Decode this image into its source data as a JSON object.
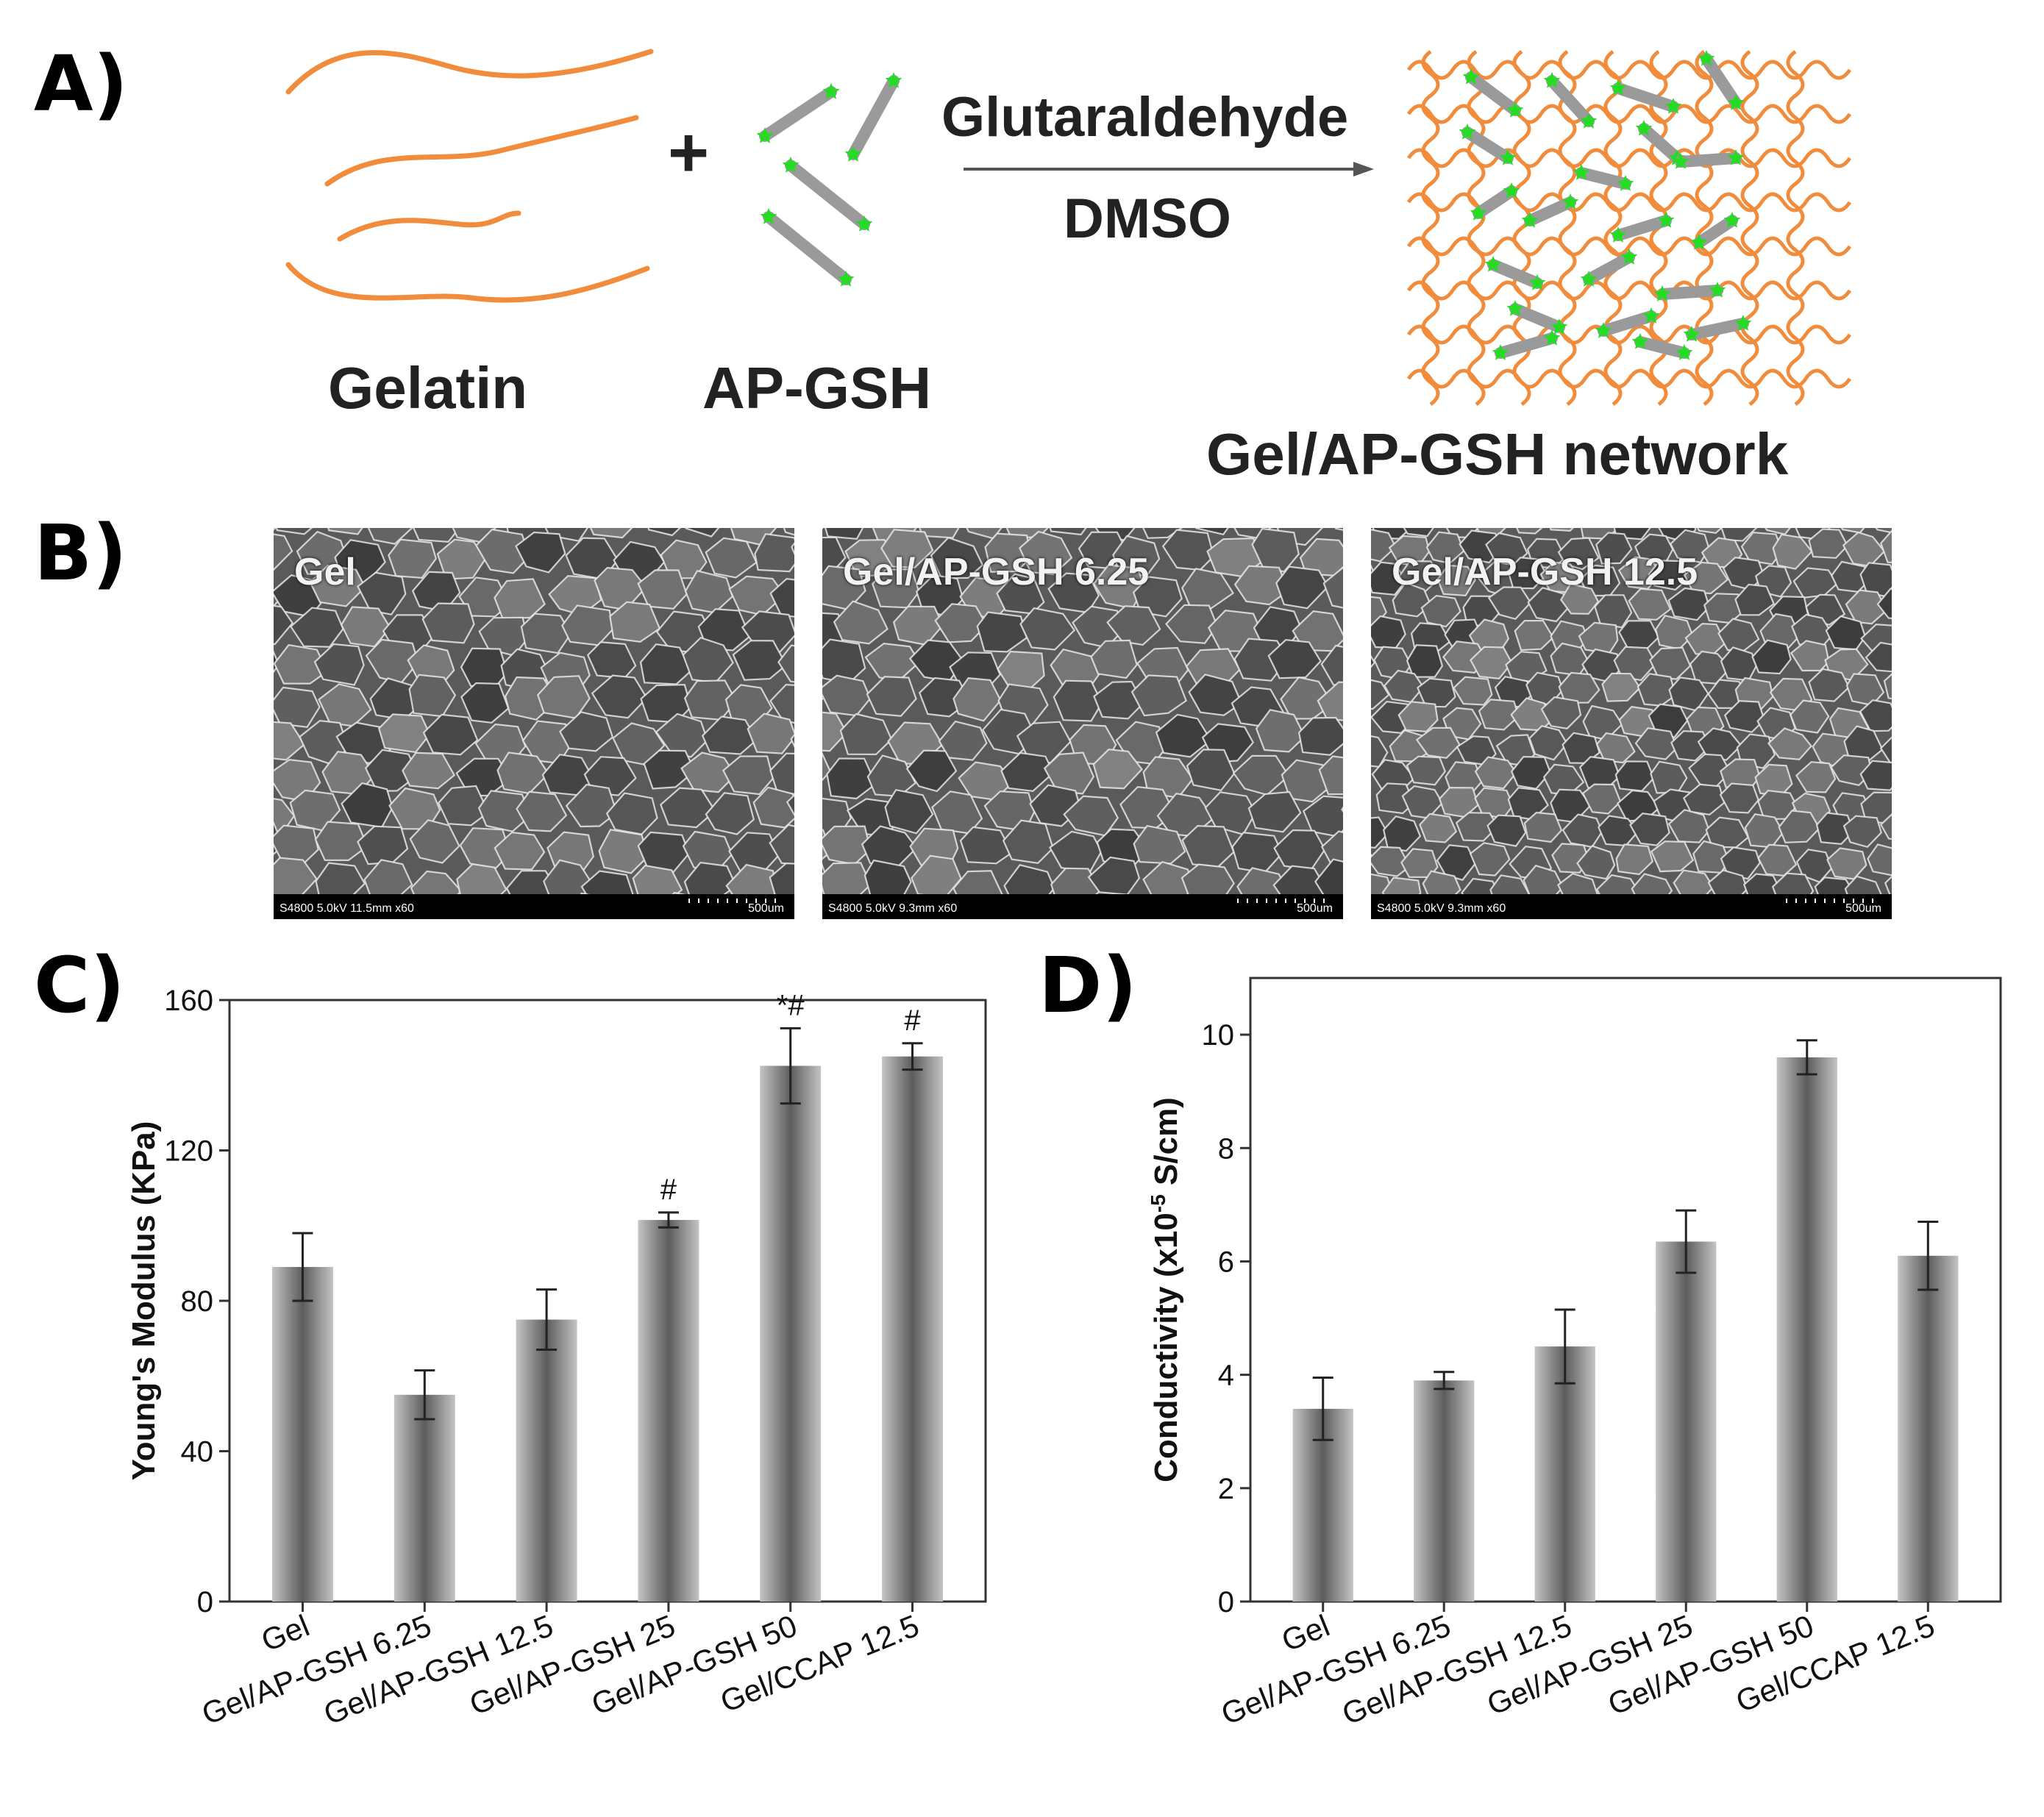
{
  "panels": {
    "a": "A)",
    "b": "B)",
    "c": "C)",
    "d": "D)"
  },
  "scheme": {
    "gelatin": "Gelatin",
    "plus": "+",
    "apgsh": "AP-GSH",
    "reagent1": "Glutaraldehyde",
    "reagent2": "DMSO",
    "network": "Gel/AP-GSH network",
    "colors": {
      "gelatin_chain": "#f08c3c",
      "ap_rod": "#9a9a9a",
      "gsh_star": "#22dd22"
    }
  },
  "sem_images": [
    {
      "label": "Gel",
      "meta": "S4800 5.0kV 11.5mm x60",
      "scale": "500um"
    },
    {
      "label": "Gel/AP-GSH 6.25",
      "meta": "S4800 5.0kV 9.3mm x60",
      "scale": "500um"
    },
    {
      "label": "Gel/AP-GSH 12.5",
      "meta": "S4800 5.0kV 9.3mm x60",
      "scale": "500um"
    }
  ],
  "chart_data": [
    {
      "type": "bar",
      "panel": "C)",
      "ylabel": "Young's Modulus (KPa)",
      "ylim": [
        0,
        160
      ],
      "yticks": [
        0,
        40,
        80,
        120,
        160
      ],
      "categories": [
        "Gel",
        "Gel/AP-GSH 6.25",
        "Gel/AP-GSH 12.5",
        "Gel/AP-GSH 25",
        "Gel/AP-GSH 50",
        "Gel/CCAP 12.5"
      ],
      "values": [
        89,
        55,
        75,
        101.5,
        142.5,
        145
      ],
      "errors": [
        9,
        6.5,
        8,
        2,
        10,
        3.5
      ],
      "annotations": [
        "",
        "",
        "",
        "#",
        "*#",
        "#"
      ]
    },
    {
      "type": "bar",
      "panel": "D)",
      "ylabel": "Conductivity (x10",
      "ylabel_sup": "-5",
      "ylabel_unit": " S/cm)",
      "ylim": [
        0,
        11
      ],
      "yticks": [
        0,
        2,
        4,
        6,
        8,
        10
      ],
      "categories": [
        "Gel",
        "Gel/AP-GSH 6.25",
        "Gel/AP-GSH 12.5",
        "Gel/AP-GSH 25",
        "Gel/AP-GSH 50",
        "Gel/CCAP 12.5"
      ],
      "values": [
        3.4,
        3.9,
        4.5,
        6.35,
        9.6,
        6.1
      ],
      "errors": [
        0.55,
        0.15,
        0.65,
        0.55,
        0.3,
        0.6
      ],
      "annotations": [
        "",
        "",
        "",
        "",
        "",
        ""
      ]
    }
  ]
}
